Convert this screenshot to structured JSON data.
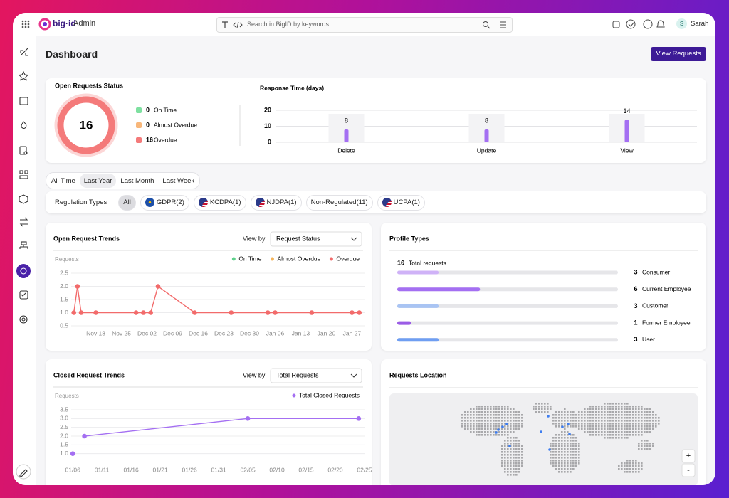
{
  "app": {
    "brand": "big·id",
    "product": "Admin",
    "search_placeholder": "Search in BigID by keywords",
    "user_initial": "S",
    "user_name": "Sarah"
  },
  "page": {
    "title": "Dashboard",
    "action": "View Requests"
  },
  "open_requests_status": {
    "title": "Open Requests Status",
    "total": 16,
    "items": [
      {
        "count": 0,
        "label": "On Time",
        "color": "#7ee0a0"
      },
      {
        "count": 0,
        "label": "Almost Overdue",
        "color": "#f8b77a"
      },
      {
        "count": 16,
        "label": "Overdue",
        "color": "#f47a7a"
      }
    ]
  },
  "time_filters": {
    "options": [
      "All Time",
      "Last Year",
      "Last Month",
      "Last Week"
    ],
    "selected": 1
  },
  "regulation_types": {
    "label": "Regulation Types",
    "options": [
      "All",
      "GDPR(2)",
      "KCDPA(1)",
      "NJDPA(1)",
      "Non-Regulated(11)",
      "UCPA(1)"
    ],
    "selected": 0
  },
  "map": {
    "title": "Requests Location",
    "zoom_in": "+",
    "zoom_out": "-"
  },
  "chart_data": [
    {
      "type": "bar",
      "title": "Response Time (days)",
      "categories": [
        "Delete",
        "Update",
        "View"
      ],
      "values": [
        8,
        8,
        14
      ],
      "color": "#a46ff2",
      "ylim": [
        0,
        20
      ],
      "yticks": [
        0,
        10,
        20
      ],
      "grid": true
    },
    {
      "type": "line",
      "title": "Open Request Trends",
      "view_by_label": "View by",
      "view_by": "Request Status",
      "y_label": "Requests",
      "xlim": [
        "Nov 07",
        "Jan 31"
      ],
      "xticks": [
        "Nov 18",
        "Nov 25",
        "Dec 02",
        "Dec 09",
        "Dec 16",
        "Dec 23",
        "Dec 30",
        "Jan 06",
        "Jan 13",
        "Jan 20",
        "Jan 27"
      ],
      "ylim": [
        0.5,
        2.5
      ],
      "yticks": [
        0.5,
        {
          "value": 1,
          "label": "1.0"
        },
        1.5,
        {
          "value": 2,
          "label": "2.0"
        },
        2.5
      ],
      "grid": true,
      "series": [
        {
          "name": "On Time",
          "color": "#5ed08a",
          "x": [],
          "values": []
        },
        {
          "name": "Almost Overdue",
          "color": "#f5b45a",
          "x": [],
          "values": []
        },
        {
          "name": "Overdue",
          "color": "#f26b6b",
          "x": [
            "Nov 12",
            "Nov 13",
            "Nov 14",
            "Nov 18",
            "Nov 29",
            "Dec 01",
            "Dec 03",
            "Dec 05",
            "Dec 15",
            "Dec 25",
            "Jan 04",
            "Jan 06",
            "Jan 16",
            "Jan 27",
            "Jan 29"
          ],
          "values": [
            1,
            2,
            1,
            1,
            1,
            1,
            1,
            2,
            1,
            1,
            1,
            1,
            1,
            1,
            1
          ]
        }
      ]
    },
    {
      "type": "line",
      "title": "Closed Request Trends",
      "view_by_label": "View by",
      "view_by": "Total Requests",
      "y_label": "Requests",
      "xlim": [
        "01/05",
        "02/25"
      ],
      "xticks": [
        "01/06",
        "01/11",
        "01/16",
        "01/21",
        "01/26",
        "01/31",
        "02/05",
        "02/10",
        "02/15",
        "02/20",
        "02/25"
      ],
      "ylim": [
        0.5,
        3.5
      ],
      "yticks": [
        {
          "value": 1,
          "label": "1.0"
        },
        1.5,
        {
          "value": 2,
          "label": "2.0"
        },
        2.5,
        {
          "value": 3,
          "label": "3.0"
        },
        3.5
      ],
      "grid": true,
      "series": [
        {
          "name": "Total Closed Requests",
          "color": "#a46ff2",
          "x": [
            "01/06",
            "01/07",
            "01/08",
            "02/05",
            "02/24"
          ],
          "values": [
            1,
            null,
            2,
            3,
            3
          ]
        }
      ]
    },
    {
      "type": "hbar",
      "title": "Profile Types",
      "total": 16,
      "total_label": "Total requests",
      "categories": [
        "Consumer",
        "Current Employee",
        "Customer",
        "Former Employee",
        "User"
      ],
      "values": [
        3,
        6,
        3,
        1,
        3
      ],
      "colors": [
        "#cfb2f7",
        "#a46ff2",
        "#a9c4f3",
        "#9b5ce6",
        "#6f9ef2"
      ],
      "xlim": [
        0,
        16
      ]
    }
  ]
}
